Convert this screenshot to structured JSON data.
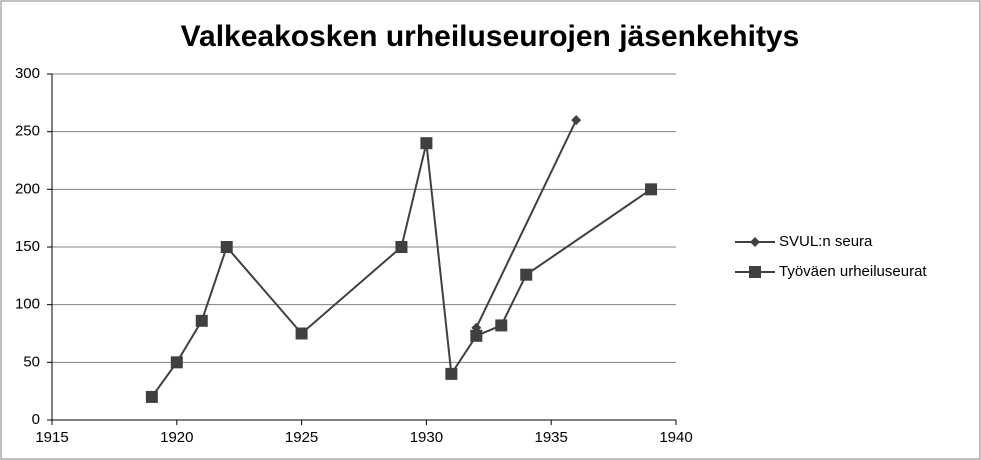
{
  "chart_data": {
    "type": "line",
    "title": "Valkeakosken urheiluseurojen jäsenkehitys",
    "xlim": [
      1915,
      1940
    ],
    "xticks": [
      1915,
      1920,
      1925,
      1930,
      1935,
      1940
    ],
    "ylim": [
      0,
      300
    ],
    "yticks": [
      0,
      50,
      100,
      150,
      200,
      250,
      300
    ],
    "grid": true,
    "legend": "right",
    "series": [
      {
        "name": "SVUL:n seura",
        "color": "#404040",
        "marker": "diamond",
        "x": [
          1932,
          1936
        ],
        "values": [
          80,
          260
        ]
      },
      {
        "name": "Työväen urheiluseurat",
        "color": "#404040",
        "marker": "square",
        "x": [
          1919,
          1920,
          1921,
          1922,
          1925,
          1929,
          1930,
          1931,
          1932,
          1933,
          1934,
          1939
        ],
        "values": [
          20,
          50,
          86,
          150,
          75,
          150,
          240,
          40,
          73,
          82,
          126,
          200
        ]
      }
    ]
  }
}
